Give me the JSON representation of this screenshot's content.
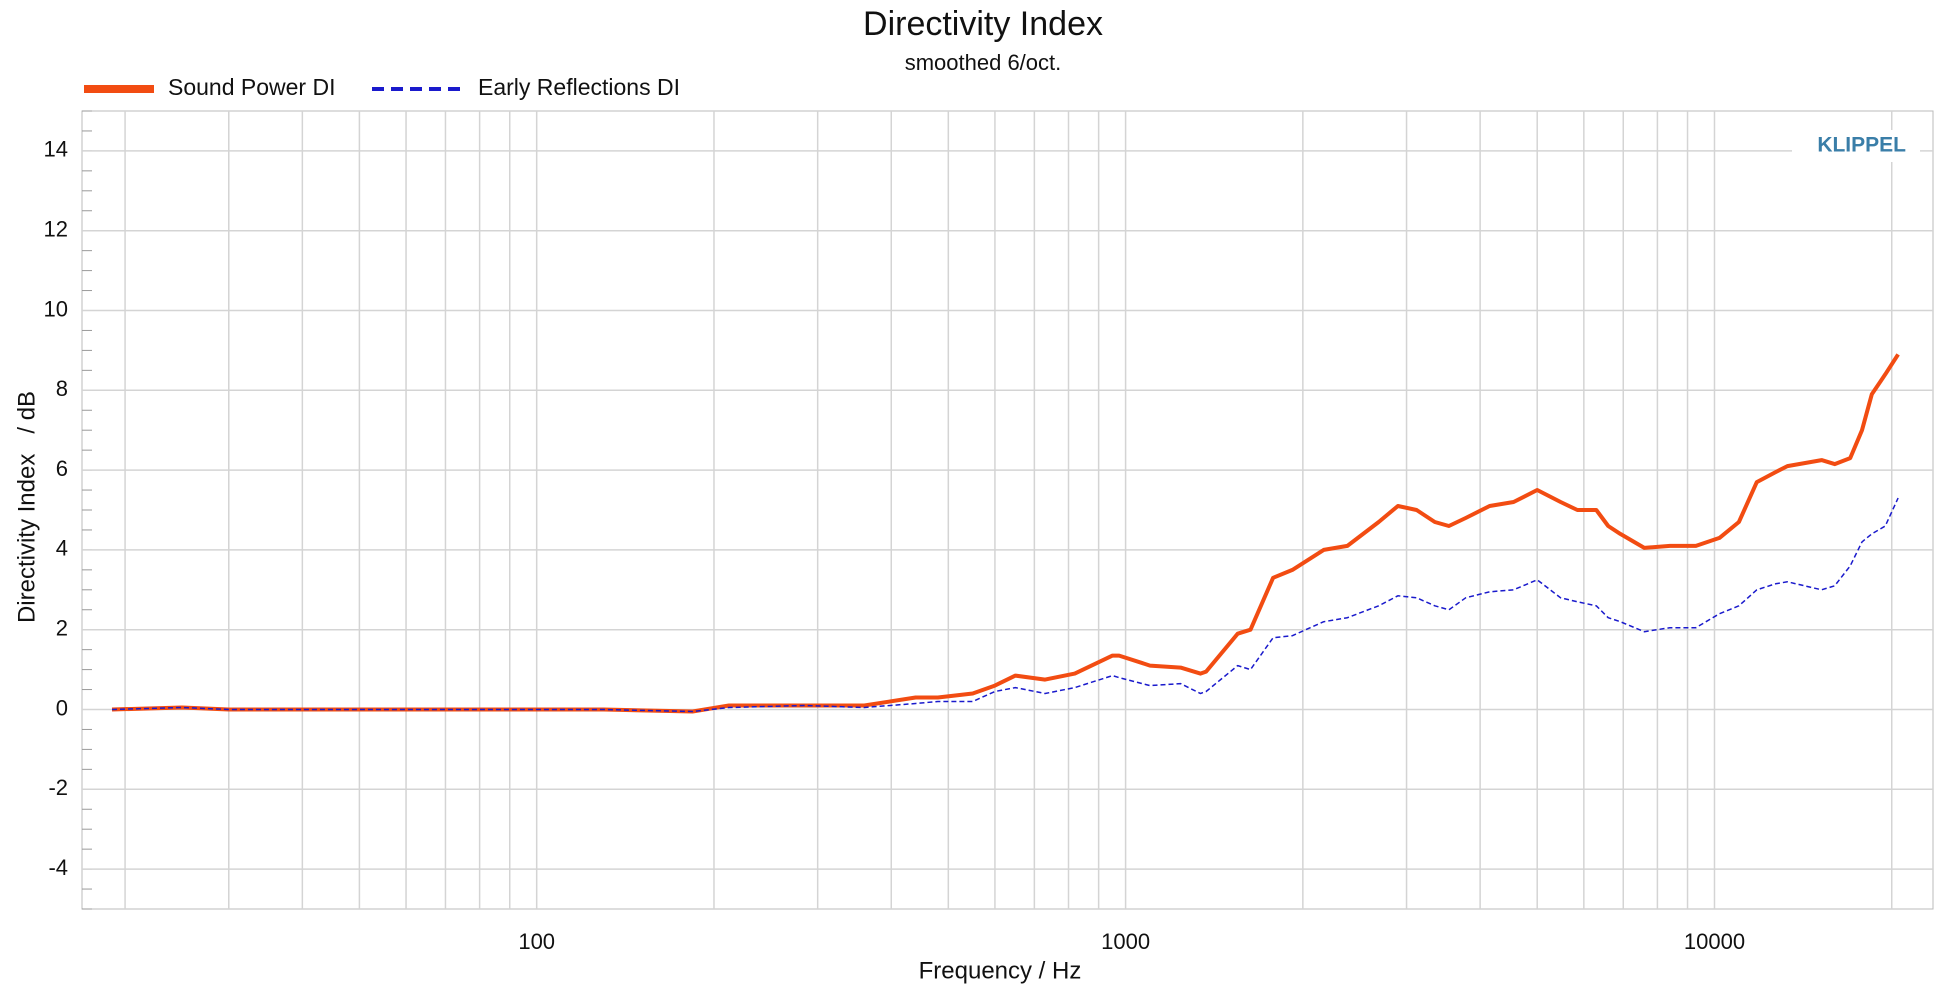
{
  "chart_data": {
    "type": "line",
    "title": "Directivity Index",
    "subtitle": "smoothed 6/oct.",
    "x_label": "Frequency / Hz",
    "y_label": "Directivity Index   / dB",
    "annotation": "KLIPPEL",
    "log_x": true,
    "grid": true,
    "xlim": [
      16.9,
      23500
    ],
    "ylim": [
      -5,
      15
    ],
    "xticks": [
      100,
      1000,
      10000
    ],
    "xminorticks": [
      20,
      30,
      40,
      50,
      60,
      70,
      80,
      90,
      200,
      300,
      400,
      500,
      600,
      700,
      800,
      900,
      2000,
      3000,
      4000,
      5000,
      6000,
      7000,
      8000,
      9000,
      20000
    ],
    "yticks": [
      -4,
      -2,
      0,
      2,
      4,
      6,
      8,
      10,
      12,
      14
    ],
    "x": [
      19,
      25,
      30,
      40,
      50,
      70,
      100,
      130,
      184,
      212,
      285,
      360,
      440,
      480,
      550,
      600,
      650,
      730,
      820,
      950,
      975,
      1100,
      1240,
      1340,
      1370,
      1550,
      1630,
      1780,
      1920,
      2170,
      2380,
      2690,
      2900,
      3120,
      3350,
      3540,
      3780,
      4150,
      4560,
      5000,
      5480,
      5850,
      6300,
      6600,
      6920,
      7600,
      8400,
      9300,
      10200,
      11000,
      11800,
      12700,
      13300,
      15200,
      16000,
      17000,
      17800,
      18500,
      19500,
      20500
    ],
    "series": [
      {
        "name": "Sound Power DI",
        "color": "#f24c12",
        "dash": false,
        "values": [
          0,
          0.05,
          0,
          0,
          0,
          0,
          0,
          0,
          -0.05,
          0.1,
          0.1,
          0.1,
          0.3,
          0.3,
          0.4,
          0.6,
          0.85,
          0.75,
          0.9,
          1.35,
          1.35,
          1.1,
          1.05,
          0.9,
          0.95,
          1.9,
          2.0,
          3.3,
          3.5,
          4.0,
          4.1,
          4.7,
          5.1,
          5.0,
          4.7,
          4.6,
          4.8,
          5.1,
          5.2,
          5.5,
          5.2,
          5.0,
          5.0,
          4.6,
          4.4,
          4.05,
          4.1,
          4.1,
          4.3,
          4.7,
          5.7,
          5.95,
          6.1,
          6.25,
          6.15,
          6.3,
          7.0,
          7.9,
          8.4,
          8.9
        ]
      },
      {
        "name": "Early Reflections DI",
        "color": "#1a1acc",
        "dash": true,
        "values": [
          0,
          0.05,
          0,
          0,
          0,
          0,
          0,
          0,
          -0.05,
          0.05,
          0.1,
          0.05,
          0.15,
          0.2,
          0.2,
          0.45,
          0.55,
          0.4,
          0.55,
          0.85,
          0.8,
          0.6,
          0.65,
          0.4,
          0.45,
          1.1,
          1.0,
          1.8,
          1.85,
          2.2,
          2.3,
          2.6,
          2.85,
          2.8,
          2.6,
          2.5,
          2.8,
          2.95,
          3.0,
          3.25,
          2.8,
          2.7,
          2.6,
          2.3,
          2.2,
          1.95,
          2.05,
          2.05,
          2.4,
          2.6,
          3.0,
          3.15,
          3.2,
          3.0,
          3.1,
          3.6,
          4.2,
          4.4,
          4.6,
          5.3
        ]
      }
    ]
  }
}
